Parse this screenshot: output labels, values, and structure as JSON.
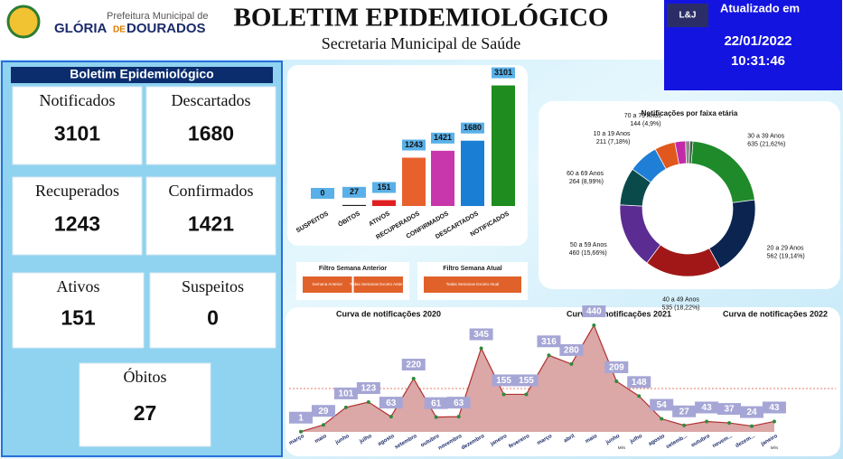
{
  "header": {
    "prefeitura": "Prefeitura Municipal de",
    "city_a": "GLÓRIA",
    "city_b": "DE",
    "city_c": "DOURADOS",
    "title": "BOLETIM EPIDEMIOLÓGICO",
    "subtitle": "Secretaria Municipal de Saúde",
    "updated_label": "Atualizado em",
    "logo": "L&J",
    "date": "22/01/2022",
    "time": "10:31:46"
  },
  "summary": {
    "title": "Boletim Epidemiológico",
    "cards": [
      {
        "label": "Notificados",
        "value": 3101
      },
      {
        "label": "Descartados",
        "value": 1680
      },
      {
        "label": "Recuperados",
        "value": 1243
      },
      {
        "label": "Confirmados",
        "value": 1421
      },
      {
        "label": "Ativos",
        "value": 151
      },
      {
        "label": "Suspeitos",
        "value": 0
      },
      {
        "label": "Óbitos",
        "value": 27
      }
    ]
  },
  "filters": [
    {
      "title": "Filtro Semana Anterior",
      "buttons": [
        "Semana Anterior",
        "Todas Semanas Exceto Anterior"
      ]
    },
    {
      "title": "Filtro Semana Atual",
      "buttons": [
        "Todas Semanas Exceto Atual"
      ]
    }
  ],
  "chart_data": [
    {
      "type": "bar",
      "categories": [
        "SUSPEITOS",
        "ÓBITOS",
        "ATIVOS",
        "RECUPERADOS",
        "CONFIRMADOS",
        "DESCARTADOS",
        "NOTIFICADOS"
      ],
      "values": [
        0,
        27,
        151,
        1243,
        1421,
        1680,
        3101
      ],
      "colors": [
        "#e02020",
        "#222222",
        "#e02020",
        "#e8612c",
        "#c837ab",
        "#1a7fd4",
        "#1e8c1e"
      ],
      "ylim": [
        0,
        3300
      ]
    },
    {
      "type": "pie",
      "title": "Notificações por faixa etária",
      "categories": [
        "30 a 39 Anos",
        "20 a 29 Anos",
        "40 a 49 Anos",
        "50 a 59 Anos",
        "60 a 69 Anos",
        "10 a 19 Anos",
        "70 a 79 Anos",
        null,
        null,
        null
      ],
      "values": [
        635,
        562,
        535,
        460,
        264,
        211,
        144,
        75,
        30,
        21
      ],
      "value_labels": [
        "635 (21,62%)",
        "562 (19,14%)",
        "535 (18,22%)",
        "460 (15,66%)",
        "264 (8,99%)",
        "211 (7,18%)",
        "144 (4,9%)",
        null,
        null,
        null
      ],
      "colors": [
        "#1f8a2a",
        "#0b2450",
        "#a11717",
        "#5b2c91",
        "#0b4a4a",
        "#1f7ed6",
        "#e0581e",
        "#c22aa8",
        "#8a8a8a",
        "#2f5d3a"
      ]
    },
    {
      "type": "area",
      "titles": [
        "Curva de notificações 2020",
        "Curva de notificações 2021",
        "Curva de notificações 2022"
      ],
      "x_label": "Mês",
      "categories": [
        "março",
        "maio",
        "junho",
        "julho",
        "agosto",
        "setembro",
        "outubro",
        "novembro",
        "dezembro",
        "janeiro",
        "fevereiro",
        "março",
        "abril",
        "maio",
        "junho",
        "julho",
        "agosto",
        "setemb...",
        "outubro",
        "novem...",
        "dezem...",
        "janeiro"
      ],
      "values": [
        1,
        29,
        101,
        123,
        63,
        220,
        61,
        63,
        345,
        155,
        155,
        316,
        280,
        440,
        209,
        148,
        54,
        27,
        43,
        37,
        24,
        43
      ],
      "ylim": [
        0,
        470
      ],
      "color": "#b03030",
      "fill": "#dba7a7"
    }
  ]
}
